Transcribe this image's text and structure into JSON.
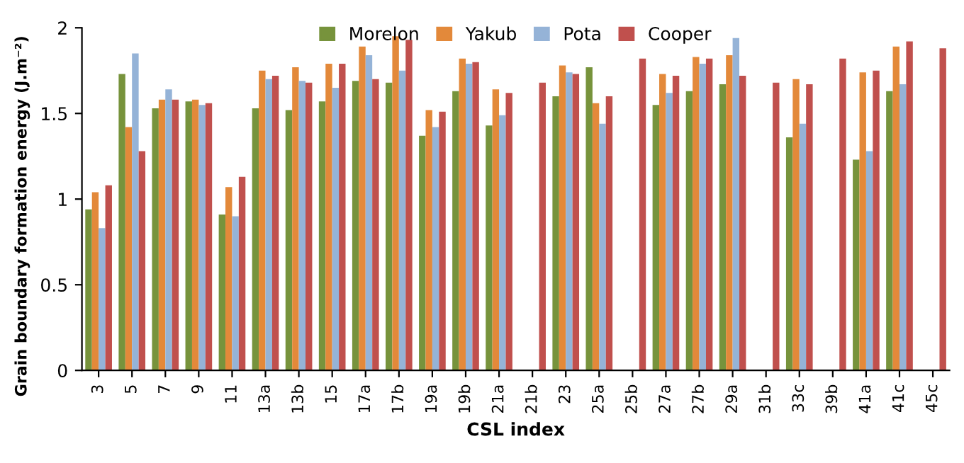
{
  "chart_data": {
    "type": "bar",
    "xlabel": "CSL index",
    "ylabel": "Grain boundary formation energy (J.m⁻²)",
    "categories": [
      "3",
      "5",
      "7",
      "9",
      "11",
      "13a",
      "13b",
      "15",
      "17a",
      "17b",
      "19a",
      "19b",
      "21a",
      "21b",
      "23",
      "25a",
      "25b",
      "27a",
      "27b",
      "29a",
      "31b",
      "33c",
      "39b",
      "41a",
      "41c",
      "45c"
    ],
    "series": [
      {
        "name": "Morelon",
        "color": "#77933c",
        "values": [
          0.94,
          1.73,
          1.53,
          1.57,
          0.91,
          1.53,
          1.52,
          1.57,
          1.69,
          1.68,
          1.37,
          1.63,
          1.43,
          null,
          1.6,
          1.77,
          null,
          1.55,
          1.63,
          1.67,
          null,
          1.36,
          null,
          1.23,
          1.63,
          null
        ]
      },
      {
        "name": "Yakub",
        "color": "#e3893a",
        "values": [
          1.04,
          1.42,
          1.58,
          1.58,
          1.07,
          1.75,
          1.77,
          1.79,
          1.89,
          1.95,
          1.52,
          1.82,
          1.64,
          null,
          1.78,
          1.56,
          null,
          1.73,
          1.83,
          1.84,
          null,
          1.7,
          null,
          1.74,
          1.89,
          null
        ]
      },
      {
        "name": "Pota",
        "color": "#95b3d7",
        "values": [
          0.83,
          1.85,
          1.64,
          1.55,
          0.9,
          1.7,
          1.69,
          1.65,
          1.84,
          1.75,
          1.42,
          1.79,
          1.49,
          null,
          1.74,
          1.44,
          null,
          1.62,
          1.79,
          1.94,
          null,
          1.44,
          null,
          1.28,
          1.67,
          null
        ]
      },
      {
        "name": "Cooper",
        "color": "#c0504d",
        "values": [
          1.08,
          1.28,
          1.58,
          1.56,
          1.13,
          1.72,
          1.68,
          1.79,
          1.7,
          1.93,
          1.51,
          1.8,
          1.62,
          1.68,
          1.73,
          1.6,
          1.82,
          1.72,
          1.82,
          1.72,
          1.68,
          1.67,
          1.82,
          1.75,
          1.92,
          1.88
        ]
      }
    ],
    "ylim": [
      0,
      2
    ],
    "yticks": [
      0,
      0.5,
      1,
      1.5,
      2
    ],
    "grid": false,
    "legend": "top"
  }
}
